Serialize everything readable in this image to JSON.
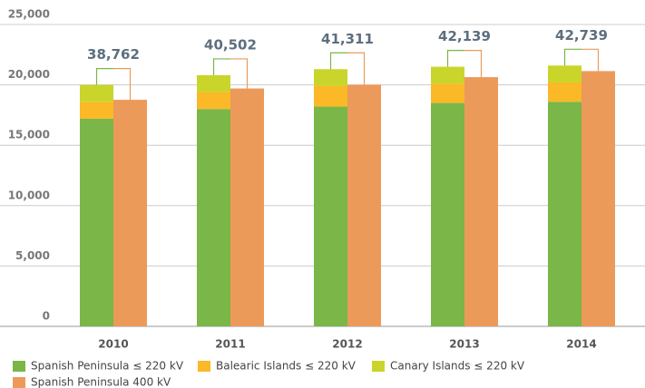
{
  "chart_data": {
    "type": "bar",
    "categories": [
      "2010",
      "2011",
      "2012",
      "2013",
      "2014"
    ],
    "series": [
      {
        "name": "Spanish Peninsula ≤ 220 kV",
        "color": "#7ab648",
        "stack": 0,
        "values": [
          17200,
          18000,
          18200,
          18500,
          18600
        ]
      },
      {
        "name": "Balearic Islands ≤ 220 kV",
        "color": "#fbb827",
        "stack": 0,
        "values": [
          1400,
          1400,
          1700,
          1600,
          1600
        ]
      },
      {
        "name": "Canary Islands ≤ 220 kV",
        "color": "#c9d52a",
        "stack": 0,
        "values": [
          1400,
          1400,
          1400,
          1400,
          1400
        ]
      },
      {
        "name": "Spanish Peninsula 400 kV",
        "color": "#ec9a5a",
        "stack": 1,
        "values": [
          18762,
          19702,
          20011,
          20639,
          21139
        ]
      }
    ],
    "totals": [
      38762,
      40502,
      41311,
      42139,
      42739
    ],
    "total_labels": [
      "38,762",
      "40,502",
      "41,311",
      "42,139",
      "42,739"
    ],
    "ylim": [
      0,
      25000
    ],
    "yticks": [
      0,
      {
        "value": 5000,
        "label": "5,000"
      },
      {
        "value": 10000,
        "label": "10,000"
      },
      {
        "value": 15000,
        "label": "15,000"
      },
      {
        "value": 20000,
        "label": "20,000"
      },
      {
        "value": 25000,
        "label": "25,000"
      }
    ],
    "grid": true
  }
}
